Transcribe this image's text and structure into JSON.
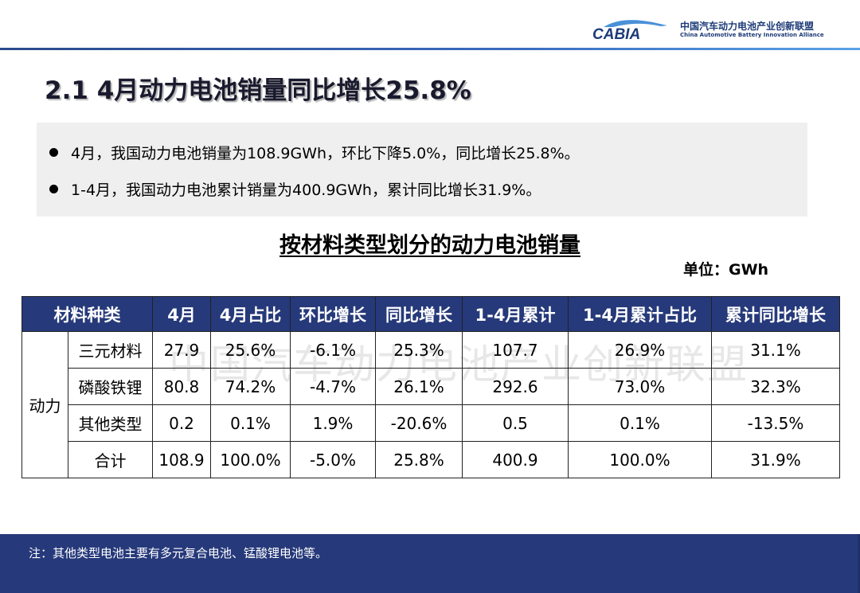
{
  "header": {
    "logo_text": "CABIA",
    "org_name_cn": "中国汽车动力电池产业创新联盟",
    "org_name_en": "China Automotive Battery Innovation Alliance"
  },
  "title": "2.1 4月动力电池销量同比增长25.8%",
  "bullets": [
    "4月，我国动力电池销量为108.9GWh，环比下降5.0%，同比增长25.8%。",
    "1-4月，我国动力电池累计销量为400.9GWh，累计同比增长31.9%。"
  ],
  "table": {
    "title": "按材料类型划分的动力电池销量",
    "unit": "单位：GWh",
    "headers": [
      "材料种类",
      "4月",
      "4月占比",
      "环比增长",
      "同比增长",
      "1-4月累计",
      "1-4月累计占比",
      "累计同比增长"
    ],
    "group_label": "动力",
    "rows": [
      [
        "三元材料",
        "27.9",
        "25.6%",
        "-6.1%",
        "25.3%",
        "107.7",
        "26.9%",
        "31.1%"
      ],
      [
        "磷酸铁锂",
        "80.8",
        "74.2%",
        "-4.7%",
        "26.1%",
        "292.6",
        "73.0%",
        "32.3%"
      ],
      [
        "其他类型",
        "0.2",
        "0.1%",
        "1.9%",
        "-20.6%",
        "0.5",
        "0.1%",
        "-13.5%"
      ],
      [
        "合计",
        "108.9",
        "100.0%",
        "-5.0%",
        "25.8%",
        "400.9",
        "100.0%",
        "31.9%"
      ]
    ]
  },
  "watermark": "中国汽车动力电池产业创新联盟",
  "footnote": "注：其他类型电池主要有多元复合电池、锰酸锂电池等。",
  "colors": {
    "header_blue": "#26397a",
    "bullet_box": "#efefef",
    "logo_blue": "#1d3b78"
  }
}
